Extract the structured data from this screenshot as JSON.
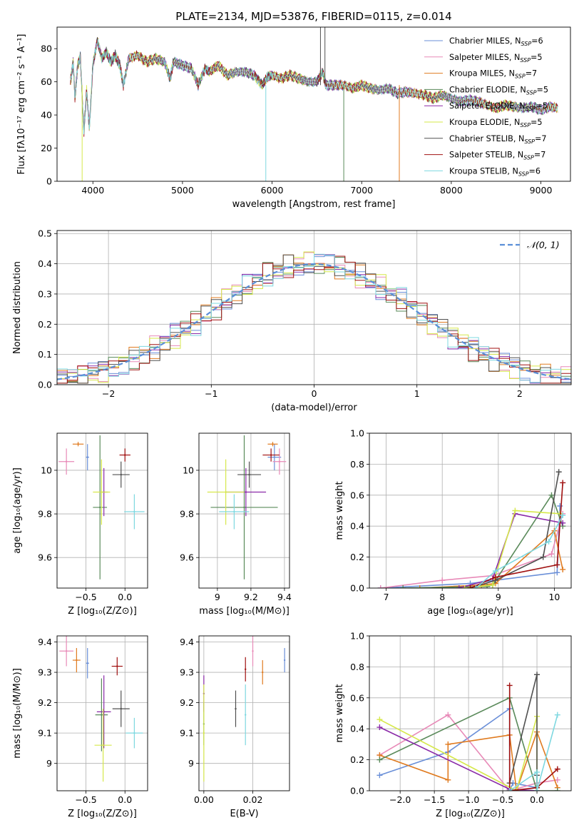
{
  "figure_title": "PLATE=2134, MJD=53876, FIBERID=0115, z=0.014",
  "models": [
    {
      "name": "Chabrier MILES",
      "nssp": "6",
      "color": "#6a8fd8"
    },
    {
      "name": "Salpeter MILES",
      "nssp": "5",
      "color": "#e88ab8"
    },
    {
      "name": "Kroupa MILES",
      "nssp": "7",
      "color": "#e07b20"
    },
    {
      "name": "Chabrier ELODIE",
      "nssp": "5",
      "color": "#5a8a5a"
    },
    {
      "name": "Salpeter ELODIE",
      "nssp": "5",
      "color": "#8a2aa8"
    },
    {
      "name": "Kroupa ELODIE",
      "nssp": "5",
      "color": "#d6e84a"
    },
    {
      "name": "Chabrier STELIB",
      "nssp": "7",
      "color": "#505050"
    },
    {
      "name": "Salpeter STELIB",
      "nssp": "7",
      "color": "#a01010"
    },
    {
      "name": "Kroupa STELIB",
      "nssp": "6",
      "color": "#7ed8e0"
    }
  ],
  "chart_data": [
    {
      "id": "spectrum",
      "type": "line",
      "xlabel": "wavelength [Angstrom, rest frame]",
      "ylabel": "Flux [fλ10⁻¹⁷ erg cm⁻² s⁻¹ A⁻¹]",
      "xlim": [
        3600,
        9330
      ],
      "ylim": [
        0,
        93
      ],
      "xticks": [
        4000,
        5000,
        6000,
        7000,
        8000,
        9000
      ],
      "yticks": [
        0,
        20,
        40,
        60,
        80
      ],
      "grid": false,
      "legend": "top-right",
      "spectrum_x": [
        3750,
        3780,
        3800,
        3830,
        3860,
        3890,
        3900,
        3930,
        3960,
        4000,
        4050,
        4100,
        4150,
        4200,
        4250,
        4300,
        4340,
        4400,
        4500,
        4600,
        4700,
        4800,
        4860,
        4900,
        5000,
        5100,
        5175,
        5250,
        5300,
        5400,
        5500,
        5600,
        5700,
        5800,
        5890,
        5950,
        6000,
        6100,
        6200,
        6300,
        6400,
        6500,
        6563,
        6600,
        6700,
        6800,
        6900,
        7000,
        7100,
        7200,
        7300,
        7400,
        7500,
        7600,
        7700,
        7800,
        7900,
        8000,
        8100,
        8200,
        8300,
        8400,
        8500,
        8600,
        8700,
        8800,
        8900,
        9000,
        9100,
        9200
      ],
      "spectrum_y": [
        60,
        72,
        50,
        70,
        75,
        40,
        30,
        55,
        32,
        70,
        85,
        74,
        78,
        72,
        76,
        70,
        58,
        74,
        76,
        72,
        74,
        72,
        62,
        72,
        70,
        68,
        58,
        68,
        66,
        70,
        64,
        66,
        66,
        64,
        58,
        63,
        64,
        62,
        64,
        62,
        60,
        60,
        66,
        58,
        58,
        58,
        56,
        58,
        56,
        55,
        56,
        53,
        54,
        53,
        52,
        50,
        52,
        50,
        48,
        49,
        48,
        46,
        44,
        46,
        45,
        44,
        45,
        43,
        45,
        44
      ]
    },
    {
      "id": "residuals",
      "type": "area",
      "xlabel": "(data-model)/error",
      "ylabel": "Normed distribution",
      "xlim": [
        -2.5,
        2.5
      ],
      "ylim": [
        0,
        0.51
      ],
      "xticks": [
        -2,
        -1,
        0,
        1,
        2
      ],
      "yticks": [
        0.0,
        0.1,
        0.2,
        0.3,
        0.4,
        0.5
      ],
      "grid": true,
      "legend": "top-right",
      "reference": "𝒩(0, 1)"
    },
    {
      "id": "age-vs-Z",
      "type": "scatter",
      "xlabel": "Z [log₁₀(Z/Z⊙)]",
      "ylabel": "age  [log₁₀(age/yr)]",
      "xlim": [
        -0.87,
        0.29
      ],
      "ylim": [
        9.46,
        10.17
      ],
      "xticks": [
        -0.5,
        0.0
      ],
      "yticks": [
        9.6,
        9.8,
        10.0
      ],
      "grid": true,
      "x": [
        -0.48,
        -0.75,
        -0.6,
        -0.32,
        -0.27,
        -0.3,
        -0.05,
        0.0,
        0.12
      ],
      "y": [
        10.06,
        10.04,
        10.12,
        9.83,
        9.9,
        9.9,
        9.98,
        10.07,
        9.81
      ],
      "xerr": [
        0.02,
        0.1,
        0.07,
        0.09,
        0.05,
        0.11,
        0.11,
        0.07,
        0.13
      ],
      "yerr": [
        0.06,
        0.06,
        0.01,
        0.33,
        0.11,
        0.15,
        0.06,
        0.03,
        0.08
      ]
    },
    {
      "id": "age-vs-mass",
      "type": "scatter",
      "xlabel": "mass [log₁₀(M/M⊙)]",
      "ylabel": "",
      "xlim": [
        8.89,
        9.43
      ],
      "ylim": [
        9.46,
        10.17
      ],
      "xticks": [
        9.0,
        9.2,
        9.4
      ],
      "yticks": [
        9.6,
        9.8,
        10.0
      ],
      "grid": true,
      "x": [
        9.34,
        9.37,
        9.33,
        9.16,
        9.17,
        9.05,
        9.19,
        9.32,
        9.1
      ],
      "y": [
        10.06,
        10.04,
        10.12,
        9.83,
        9.9,
        9.9,
        9.98,
        10.07,
        9.81
      ],
      "xerr": [
        0.04,
        0.04,
        0.03,
        0.2,
        0.12,
        0.11,
        0.07,
        0.05,
        0.09
      ],
      "yerr": [
        0.06,
        0.06,
        0.01,
        0.33,
        0.11,
        0.15,
        0.06,
        0.03,
        0.08
      ]
    },
    {
      "id": "mass-weight-vs-age",
      "type": "line",
      "xlabel": "age  [log₁₀(age/yr)]",
      "ylabel": "mass weight",
      "xlim": [
        6.7,
        10.3
      ],
      "ylim": [
        0,
        1.0
      ],
      "xticks": [
        7,
        8,
        9,
        10
      ],
      "yticks": [
        0.0,
        0.2,
        0.4,
        0.6,
        0.8,
        1.0
      ],
      "grid": true,
      "series": [
        {
          "x": [
            6.9,
            8.5,
            8.95,
            10.05,
            10.1
          ],
          "y": [
            0.0,
            0.03,
            0.05,
            0.1,
            0.53
          ]
        },
        {
          "x": [
            6.9,
            8.0,
            8.9,
            9.95,
            10.15
          ],
          "y": [
            0.0,
            0.05,
            0.08,
            0.22,
            0.48
          ]
        },
        {
          "x": [
            7.6,
            8.7,
            8.95,
            10.0,
            10.15
          ],
          "y": [
            0.0,
            0.02,
            0.03,
            0.37,
            0.12
          ]
        },
        {
          "x": [
            7.3,
            8.8,
            8.9,
            9.95,
            10.15
          ],
          "y": [
            0.0,
            0.01,
            0.02,
            0.6,
            0.4
          ]
        },
        {
          "x": [
            8.3,
            8.9,
            9.3,
            10.15
          ],
          "y": [
            0.0,
            0.06,
            0.48,
            0.42
          ]
        },
        {
          "x": [
            8.4,
            8.9,
            9.3,
            10.1
          ],
          "y": [
            0.0,
            0.02,
            0.5,
            0.48
          ]
        },
        {
          "x": [
            8.5,
            8.95,
            9.8,
            10.08
          ],
          "y": [
            0.0,
            0.05,
            0.2,
            0.75
          ]
        },
        {
          "x": [
            8.5,
            8.95,
            10.05,
            10.15
          ],
          "y": [
            0.0,
            0.07,
            0.15,
            0.68
          ]
        },
        {
          "x": [
            8.6,
            8.95,
            9.9,
            10.15
          ],
          "y": [
            0.0,
            0.11,
            0.3,
            0.47
          ]
        }
      ]
    },
    {
      "id": "mass-vs-Z",
      "type": "scatter",
      "xlabel": "Z [log₁₀(Z/Z⊙)]",
      "ylabel": "mass [log₁₀(M/M⊙)]",
      "xlim": [
        -0.87,
        0.29
      ],
      "ylim": [
        8.91,
        9.42
      ],
      "xticks": [
        -0.5,
        0.0
      ],
      "yticks": [
        9.0,
        9.1,
        9.2,
        9.3,
        9.4
      ],
      "grid": true,
      "x": [
        -0.48,
        -0.75,
        -0.62,
        -0.3,
        -0.27,
        -0.28,
        -0.05,
        -0.1,
        0.12
      ],
      "y": [
        9.33,
        9.37,
        9.34,
        9.16,
        9.17,
        9.06,
        9.18,
        9.32,
        9.1
      ],
      "xerr": [
        0.02,
        0.09,
        0.05,
        0.08,
        0.09,
        0.11,
        0.11,
        0.07,
        0.11
      ],
      "yerr": [
        0.05,
        0.05,
        0.04,
        0.12,
        0.12,
        0.12,
        0.06,
        0.03,
        0.05
      ]
    },
    {
      "id": "mass-vs-ebv",
      "type": "scatter",
      "xlabel": "E(B-V)",
      "ylabel": "",
      "xlim": [
        -0.002,
        0.035
      ],
      "ylim": [
        8.91,
        9.42
      ],
      "xticks": [
        0.0,
        0.02
      ],
      "yticks": [
        9.0,
        9.1,
        9.2,
        9.3,
        9.4
      ],
      "grid": true,
      "x": [
        0.033,
        0.02,
        0.024,
        0.0,
        0.0,
        0.0,
        0.013,
        0.017,
        0.017
      ],
      "y": [
        9.34,
        9.37,
        9.3,
        9.13,
        9.23,
        9.1,
        9.18,
        9.31,
        9.16
      ],
      "xerr": [
        0,
        0,
        0,
        0,
        0,
        0,
        0,
        0,
        0
      ],
      "yerr": [
        0.04,
        0.05,
        0.04,
        0.07,
        0.06,
        0.16,
        0.06,
        0.04,
        0.1
      ]
    },
    {
      "id": "mass-weight-vs-Z",
      "type": "line",
      "xlabel": "Z [log₁₀(Z/Z⊙)]",
      "ylabel": "mass weight",
      "xlim": [
        -2.45,
        0.5
      ],
      "ylim": [
        0,
        1.0
      ],
      "xticks": [
        -2.0,
        -1.5,
        -1.0,
        -0.5,
        0.0
      ],
      "yticks": [
        0.0,
        0.2,
        0.4,
        0.6,
        0.8,
        1.0
      ],
      "grid": true,
      "series": [
        {
          "x": [
            -2.3,
            -1.3,
            -0.4,
            -0.4,
            -0.35,
            0.0
          ],
          "y": [
            0.1,
            0.25,
            0.53,
            0.0,
            0.05,
            0.02
          ]
        },
        {
          "x": [
            -2.3,
            -1.3,
            -0.4,
            0.0,
            0.3
          ],
          "y": [
            0.23,
            0.49,
            0.0,
            0.05,
            0.07
          ]
        },
        {
          "x": [
            -2.3,
            -1.3,
            -1.3,
            -0.4,
            -0.3,
            0.0,
            0.3
          ],
          "y": [
            0.23,
            0.07,
            0.3,
            0.36,
            0.0,
            0.38,
            0.02
          ]
        },
        {
          "x": [
            -2.3,
            -0.4,
            0.0,
            0.3
          ],
          "y": [
            0.2,
            0.6,
            0.0,
            0.0
          ]
        },
        {
          "x": [
            -2.3,
            -0.4,
            0.0
          ],
          "y": [
            0.41,
            0.01,
            0.0
          ]
        },
        {
          "x": [
            -2.3,
            -0.3,
            0.0,
            0.0
          ],
          "y": [
            0.46,
            0.0,
            0.48,
            0.02
          ]
        },
        {
          "x": [
            -0.4,
            0.0,
            0.0,
            0.0
          ],
          "y": [
            0.05,
            0.75,
            0.1,
            0.0
          ]
        },
        {
          "x": [
            -0.4,
            -0.4,
            0.0,
            0.3
          ],
          "y": [
            0.68,
            0.0,
            0.02,
            0.14
          ]
        },
        {
          "x": [
            -0.4,
            0.0,
            0.0,
            0.3
          ],
          "y": [
            0.0,
            0.12,
            0.0,
            0.49
          ]
        }
      ]
    }
  ]
}
